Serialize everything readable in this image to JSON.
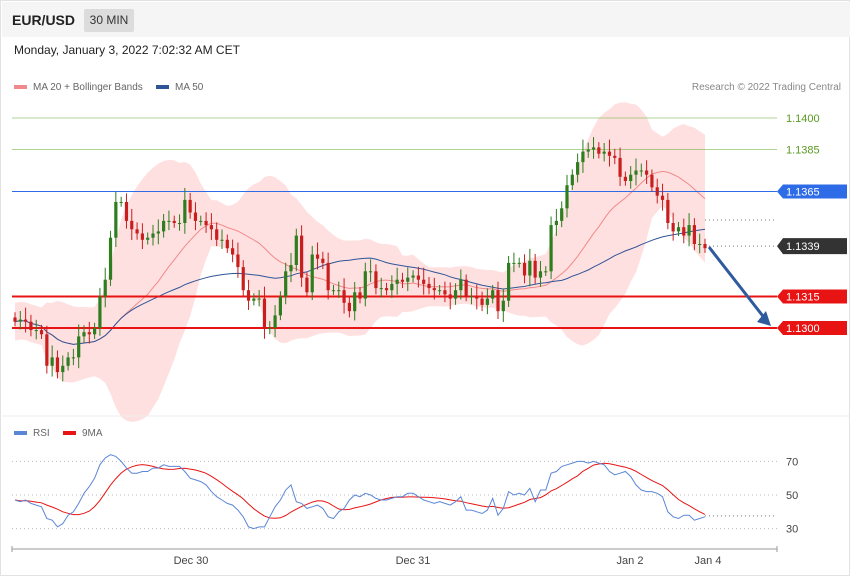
{
  "header": {
    "symbol": "EUR/USD",
    "timeframe": "30 MIN"
  },
  "datetime": "Monday, January 3, 2022 7:02:32 AM CET",
  "legend": {
    "ma20": {
      "label": "MA 20 + Bollinger Bands",
      "color": "#f08a8a"
    },
    "ma50": {
      "label": "MA 50",
      "color": "#2f5597"
    },
    "credit": "Research © 2022 Trading Central"
  },
  "colors": {
    "up": "#2e7d1f",
    "down": "#c81e1e",
    "band": "#ffd6d6",
    "arrow": "#2f5b9e",
    "resistance": "#7ab648",
    "pivot": "#2e6be6",
    "support": "#e81414",
    "last": "#333333"
  },
  "chart_data": [
    {
      "type": "candlestick",
      "yrange": [
        1.127,
        1.141
      ],
      "x_ticks": [
        "Dec 30",
        "Dec 31",
        "Jan 2",
        "Jan 4"
      ],
      "levels": [
        {
          "label": "1.1400",
          "value": 1.14,
          "kind": "resistance"
        },
        {
          "label": "1.1385",
          "value": 1.1385,
          "kind": "resistance"
        },
        {
          "label": "1.1365",
          "value": 1.1365,
          "kind": "pivot"
        },
        {
          "label": "1.1339",
          "value": 1.1339,
          "kind": "last"
        },
        {
          "label": "1.1315",
          "value": 1.1315,
          "kind": "support"
        },
        {
          "label": "1.1300",
          "value": 1.13,
          "kind": "support"
        }
      ],
      "arrow": {
        "from": 1.1339,
        "to": 1.13
      },
      "close": [
        1.1303,
        1.1304,
        1.1303,
        1.1299,
        1.1299,
        1.1297,
        1.1282,
        1.1286,
        1.1279,
        1.1282,
        1.1286,
        1.1286,
        1.1296,
        1.1298,
        1.1297,
        1.13,
        1.1315,
        1.1323,
        1.1343,
        1.136,
        1.136,
        1.1351,
        1.1347,
        1.1345,
        1.1342,
        1.1343,
        1.1345,
        1.1346,
        1.1351,
        1.1351,
        1.135,
        1.135,
        1.1361,
        1.1355,
        1.1351,
        1.1351,
        1.1349,
        1.1347,
        1.1342,
        1.1342,
        1.1338,
        1.1335,
        1.1329,
        1.1318,
        1.1313,
        1.1314,
        1.1314,
        1.13,
        1.13,
        1.1306,
        1.1315,
        1.1327,
        1.133,
        1.1344,
        1.1324,
        1.1317,
        1.1335,
        1.1333,
        1.1331,
        1.1318,
        1.1318,
        1.1318,
        1.1312,
        1.1308,
        1.1317,
        1.1314,
        1.1327,
        1.1327,
        1.1319,
        1.1319,
        1.1318,
        1.1321,
        1.1323,
        1.1322,
        1.1324,
        1.1325,
        1.1323,
        1.1321,
        1.1319,
        1.1318,
        1.1318,
        1.1316,
        1.1314,
        1.1318,
        1.1323,
        1.1315,
        1.1315,
        1.1314,
        1.1311,
        1.1314,
        1.1318,
        1.1308,
        1.1313,
        1.1331,
        1.1331,
        1.1331,
        1.1325,
        1.1332,
        1.1324,
        1.1327,
        1.1327,
        1.1349,
        1.1351,
        1.1357,
        1.1368,
        1.1373,
        1.1379,
        1.1384,
        1.1385,
        1.1386,
        1.1383,
        1.1384,
        1.1382,
        1.1381,
        1.1372,
        1.137,
        1.1373,
        1.1375,
        1.1375,
        1.1373,
        1.1367,
        1.1363,
        1.1361,
        1.135,
        1.1346,
        1.1348,
        1.1344,
        1.1349,
        1.134,
        1.134,
        1.1338
      ]
    },
    {
      "type": "line",
      "title": "RSI",
      "series": [
        {
          "name": "RSI",
          "color": "#5b86d6"
        },
        {
          "name": "9MA",
          "color": "#e81414"
        }
      ],
      "y_ticks": [
        70,
        50,
        30
      ],
      "rsi": [
        47,
        46,
        47,
        45,
        44,
        43,
        36,
        35,
        31,
        33,
        38,
        40,
        45,
        51,
        55,
        60,
        68,
        72,
        74,
        73,
        70,
        66,
        63,
        63,
        64,
        64,
        66,
        66,
        68,
        67,
        67,
        67,
        64,
        60,
        59,
        58,
        56,
        52,
        49,
        47,
        45,
        44,
        41,
        37,
        31,
        30,
        31,
        31,
        37,
        43,
        47,
        53,
        56,
        46,
        45,
        42,
        43,
        44,
        42,
        37,
        36,
        40,
        42,
        47,
        50,
        49,
        51,
        50,
        48,
        47,
        47,
        48,
        49,
        49,
        51,
        51,
        49,
        47,
        46,
        45,
        46,
        45,
        44,
        46,
        49,
        41,
        41,
        40,
        39,
        41,
        48,
        38,
        42,
        52,
        50,
        51,
        50,
        54,
        46,
        53,
        53,
        63,
        64,
        67,
        68,
        69,
        70,
        70,
        69,
        70,
        69,
        68,
        64,
        62,
        63,
        64,
        61,
        56,
        53,
        52,
        52,
        51,
        49,
        40,
        37,
        36,
        38,
        38,
        35,
        36,
        37
      ]
    }
  ]
}
